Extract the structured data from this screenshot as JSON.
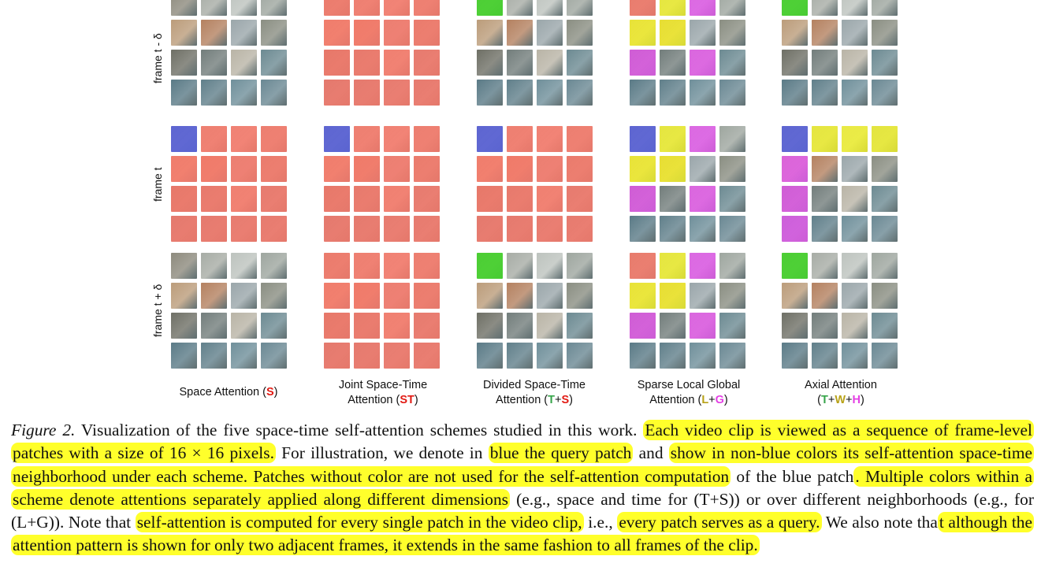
{
  "row_labels": [
    "frame t - δ",
    "frame t",
    "frame t + δ"
  ],
  "columns": [
    {
      "line1": "",
      "line2_pre": "Space Attention (",
      "parts": [
        {
          "t": "S",
          "c": "red"
        }
      ],
      "line2_post": ")"
    },
    {
      "line1": "Joint Space-Time",
      "line2_pre": "Attention (",
      "parts": [
        {
          "t": "ST",
          "c": "red"
        }
      ],
      "line2_post": ")"
    },
    {
      "line1": "Divided Space-Time",
      "line2_pre": "Attention (",
      "parts": [
        {
          "t": "T",
          "c": "green"
        },
        {
          "t": "+",
          "c": ""
        },
        {
          "t": "S",
          "c": "red"
        }
      ],
      "line2_post": ")"
    },
    {
      "line1": "Sparse Local Global",
      "line2_pre": "Attention (",
      "parts": [
        {
          "t": "L",
          "c": "olive"
        },
        {
          "t": "+",
          "c": ""
        },
        {
          "t": "G",
          "c": "magenta"
        }
      ],
      "line2_post": ")"
    },
    {
      "line1": "Axial Attention",
      "line2_pre": "(",
      "parts": [
        {
          "t": "T",
          "c": "green"
        },
        {
          "t": "+",
          "c": ""
        },
        {
          "t": "W",
          "c": "olive"
        },
        {
          "t": "+",
          "c": ""
        },
        {
          "t": "H",
          "c": "magenta"
        }
      ],
      "line2_post": ")"
    }
  ],
  "colors": {
    "query_blue": "#5a63d8",
    "red": "#e21b14",
    "green": "#37a54a",
    "olive_yellow": "#b8a218",
    "magenta": "#e440e4",
    "highlight": "#ffff2b",
    "overlay_red": "#f7796a",
    "overlay_green": "#45d52c",
    "overlay_yellow": "#f2f22a",
    "overlay_magenta": "#e05ae8"
  },
  "caption": {
    "fig_label": "Figure 2.",
    "segments": [
      {
        "t": " Visualization of the five space-time self-attention schemes studied in this work. ",
        "h": false
      },
      {
        "t": "Each video clip is viewed as a sequence of frame-level patches with a size of 16 × 16 pixels.",
        "h": true
      },
      {
        "t": " For illustration, we denote in ",
        "h": false
      },
      {
        "t": "blue the query patch",
        "h": true
      },
      {
        "t": " and ",
        "h": false
      },
      {
        "t": "show in non-blue colors its self-attention space-time neighborhood under each scheme. Patches without color are not used for the self-attention computation",
        "h": true
      },
      {
        "t": " of the blue patch",
        "h": false
      },
      {
        "t": ". Multiple colors within a scheme denote attentions separately applied along different dimensions",
        "h": true
      },
      {
        "t": " (e.g., space and time for (T+S)) or over different neighborhoods (e.g., for (L+G)). Note that ",
        "h": false
      },
      {
        "t": "self-attention is computed for every single patch in the video clip,",
        "h": true
      },
      {
        "t": " i.e., ",
        "h": false
      },
      {
        "t": "every patch serves as a query.",
        "h": true
      },
      {
        "t": " We also note tha",
        "h": false
      },
      {
        "t": "t although the attention pattern is shown for only two adjacent frames, it extends in the same fashion to all frames of the clip.",
        "h": true
      }
    ]
  }
}
